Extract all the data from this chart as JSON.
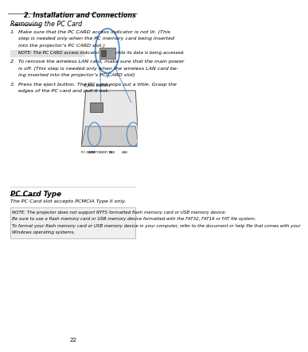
{
  "bg_color": "#ffffff",
  "header_text": "2. Installation and Connections",
  "section1_title": "Removing the PC Card",
  "item1_line1": "1.  Make sure that the PC CARD access indicator is not lit. (This",
  "item1_line2": "     step is needed only when the PC memory card being inserted",
  "item1_line3": "     into the projector’s PC CARD slot.)",
  "note1_text": "     NOTE: The PC CARD access indicator lights while its data is being accessed.",
  "item2_line1": "2.  To remove the wireless LAN card, make sure that the main power",
  "item2_line2": "     is off. (This step is needed only when the wireless LAN card be-",
  "item2_line3": "     ing inserted into the projector’s PC CARD slot)",
  "item3_line1": "3.  Press the eject button. The PC card pops out a little. Grasp the",
  "item3_line2": "     edges of the PC card and pull it out.",
  "eject_label": "Eject button",
  "section2_title": "PC Card Type",
  "section2_body": "The PC Card slot accepts PCMCIA Type II only.",
  "note2_line1": "NOTE: The projector does not support NTFS formatted flash memory card or USB memory device.",
  "note2_line2": "Be sure to use a flash memory card or USB memory device formatted with the FAT32, FAT16 or FAT file system.",
  "note2_line3": "To format your flash memory card or USB memory device in your computer, refer to the document or help file that comes with your",
  "note2_line4": "Windows operating systems.",
  "page_number": "22",
  "text_color": "#000000",
  "note_bg_color": "#f0f0f0",
  "note_border_color": "#aaaaaa",
  "header_fontsize": 5.8,
  "section_title_fontsize": 5.8,
  "body_fontsize": 4.6,
  "note_fontsize": 4.0,
  "small_fontsize": 3.8
}
